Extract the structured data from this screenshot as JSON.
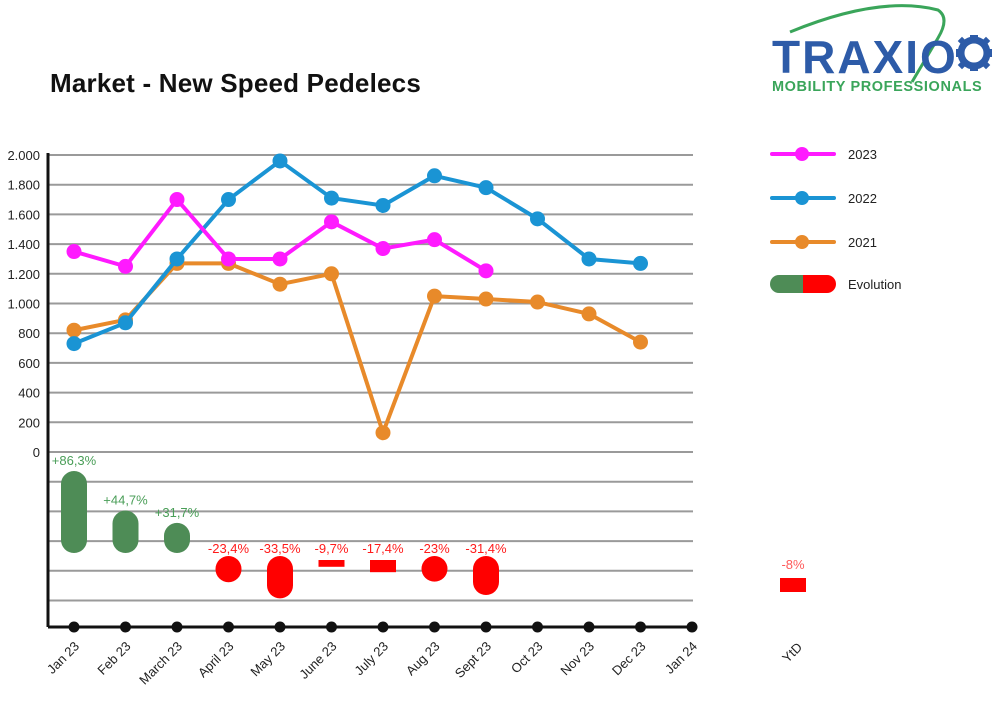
{
  "header": {
    "title": "Market - New Speed Pedelecs"
  },
  "logo": {
    "name": "TRAXIO",
    "tagline": "MOBILITY PROFESSIONALS",
    "colors": {
      "main": "#2d5ba8",
      "accent": "#3aa55a"
    }
  },
  "legend": {
    "items": [
      {
        "label": "2023",
        "color": "#ff1aff"
      },
      {
        "label": "2022",
        "color": "#1a94d4"
      },
      {
        "label": "2021",
        "color": "#e88a2a"
      },
      {
        "label": "Evolution",
        "colors": [
          "#4e8c56",
          "#ff0000"
        ]
      }
    ]
  },
  "chart_data": {
    "type": "line",
    "title": "Market - New Speed Pedelecs",
    "xlabel": "",
    "ylabel": "",
    "ylim": [
      0,
      2000
    ],
    "yticks": [
      "0",
      "200",
      "400",
      "600",
      "800",
      "1.000",
      "1.200",
      "1.400",
      "1.600",
      "1.800",
      "2.000"
    ],
    "grid": true,
    "legend_position": "right",
    "categories": [
      "Jan 23",
      "Feb 23",
      "March 23",
      "April 23",
      "May 23",
      "June 23",
      "July 23",
      "Aug 23",
      "Sept 23",
      "Oct 23",
      "Nov 23",
      "Dec 23",
      "Jan 24"
    ],
    "series": [
      {
        "name": "2023",
        "color": "#ff1aff",
        "values": [
          1350,
          1250,
          1700,
          1300,
          1300,
          1550,
          1370,
          1430,
          1220,
          null,
          null,
          null,
          null
        ]
      },
      {
        "name": "2022",
        "color": "#1a94d4",
        "values": [
          730,
          870,
          1300,
          1700,
          1960,
          1710,
          1660,
          1860,
          1780,
          1570,
          1300,
          1270,
          null
        ]
      },
      {
        "name": "2021",
        "color": "#e88a2a",
        "values": [
          820,
          890,
          1270,
          1270,
          1130,
          1200,
          130,
          1050,
          1030,
          1010,
          930,
          740,
          null
        ]
      }
    ],
    "evolution": {
      "labels": [
        "+86,3%",
        "+44,7%",
        "+31,7%",
        "-23,4%",
        "-33,5%",
        "-9,7%",
        "-17,4%",
        "-23%",
        "-31,4%"
      ],
      "values": [
        86.3,
        44.7,
        31.7,
        -23.4,
        -33.5,
        -9.7,
        -17.4,
        -23,
        -31.4
      ],
      "ytd_label": "-8%",
      "ytd_value": -8,
      "ytd_category": "YtD",
      "positive_color": "#4e8c56",
      "negative_color": "#ff0000"
    }
  }
}
